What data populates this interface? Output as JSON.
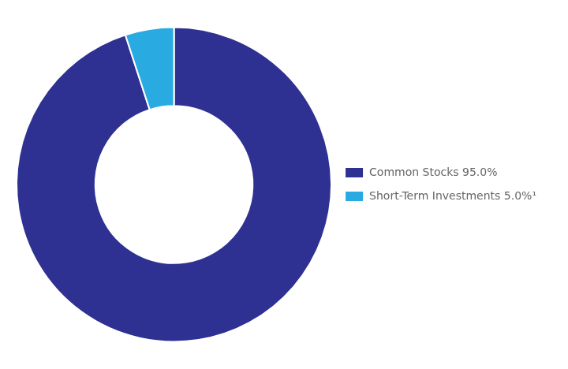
{
  "chart_data": {
    "type": "doughnut",
    "categories": [
      "Common Stocks 95.0%",
      "Short-Term Investments 5.0%¹"
    ],
    "values": [
      95.0,
      5.0
    ],
    "colors": [
      "#2E3192",
      "#29ABE2"
    ],
    "legend": "right"
  }
}
